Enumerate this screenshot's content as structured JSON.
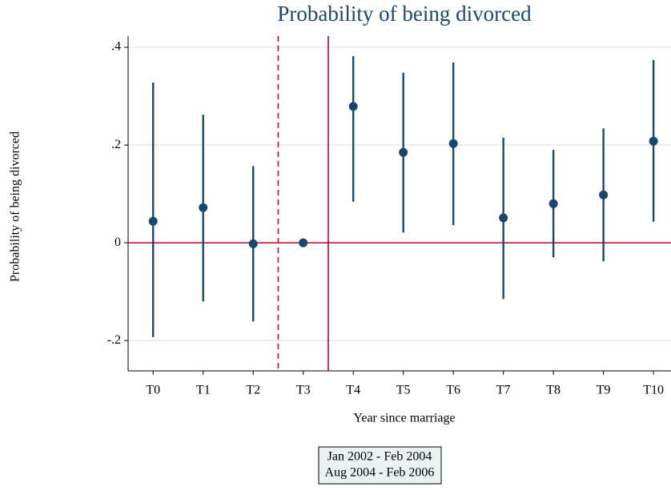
{
  "chart_data": {
    "type": "errorbar",
    "title": "Probability of being divorced",
    "xlabel": "Year since marriage",
    "ylabel": "Probability of being divorced",
    "categories": [
      "T0",
      "T1",
      "T2",
      "T3",
      "T4",
      "T5",
      "T6",
      "T7",
      "T8",
      "T9",
      "T10"
    ],
    "series": [
      {
        "color": "#1a476f",
        "values": [
          0.044,
          0.072,
          -0.002,
          0,
          0.279,
          0.185,
          0.203,
          0.051,
          0.08,
          0.098,
          0.208
        ],
        "lower": [
          -0.193,
          -0.12,
          -0.161,
          null,
          0.084,
          0.021,
          0.036,
          -0.115,
          -0.03,
          -0.038,
          0.043
        ],
        "upper": [
          0.328,
          0.262,
          0.157,
          null,
          0.382,
          0.348,
          0.369,
          0.215,
          0.19,
          0.234,
          0.374
        ]
      }
    ],
    "xlim": [
      -0.5,
      10.35
    ],
    "ylim": [
      -0.262,
      0.423
    ],
    "yticks": [
      {
        "value": -0.2,
        "label": "-.2"
      },
      0,
      {
        "value": 0.2,
        "label": ".2"
      },
      {
        "value": 0.4,
        "label": ".4"
      }
    ],
    "grid": true,
    "hline": {
      "value": 0,
      "color": "#c10534"
    },
    "vlines": [
      {
        "value": 2.5,
        "style": "dashed",
        "color": "#c10534"
      },
      {
        "value": 3.5,
        "style": "solid",
        "color": "#c10534"
      }
    ],
    "legend": {
      "entries": [
        "Jan 2002 - Feb 2004",
        "Aug 2004 - Feb 2006"
      ],
      "position": "bottom"
    }
  }
}
